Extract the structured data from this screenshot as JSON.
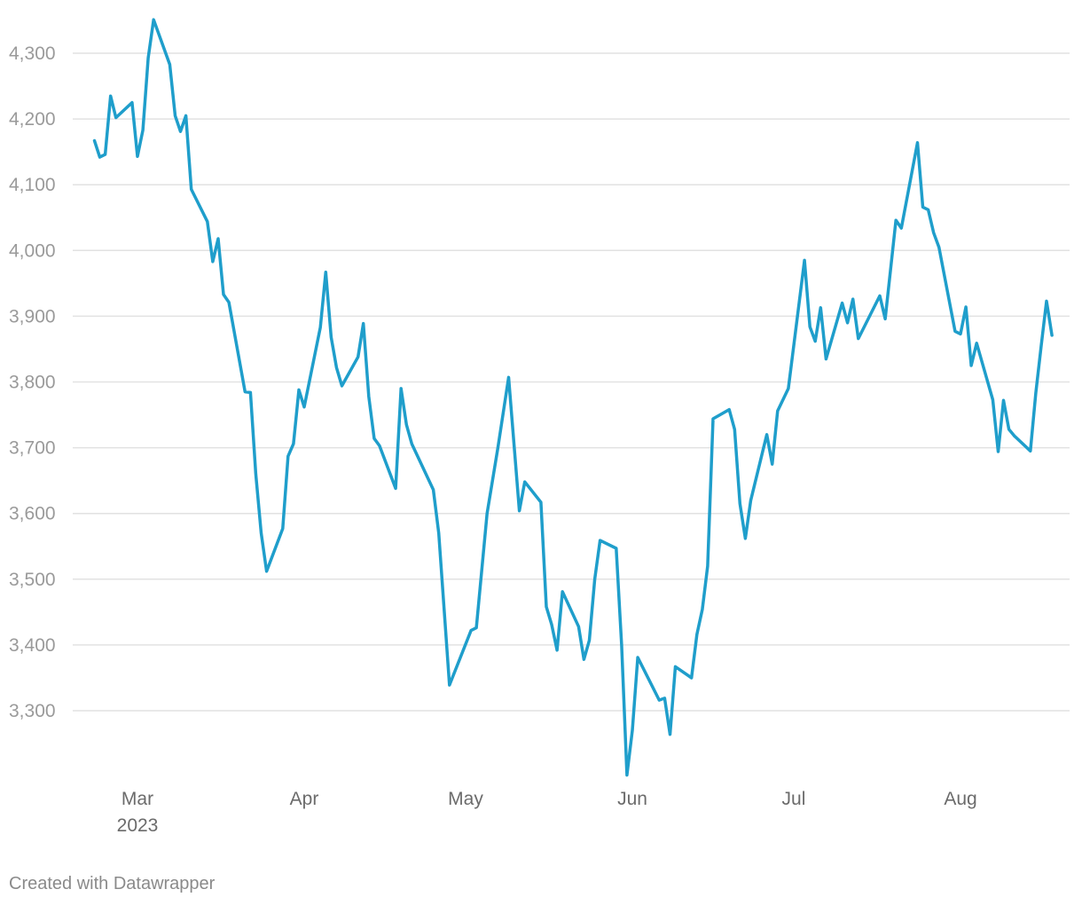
{
  "footer": {
    "credit": "Created with Datawrapper"
  },
  "colors": {
    "line": "#1f9ecb",
    "grid": "#e2e2e2"
  },
  "chart_data": {
    "type": "line",
    "title": "",
    "xlabel": "",
    "ylabel": "",
    "grid": true,
    "ylim": [
      3200,
      4350
    ],
    "yticks": [
      {
        "value": 3300,
        "label": "3,300"
      },
      {
        "value": 3400,
        "label": "3,400"
      },
      {
        "value": 3500,
        "label": "3,500"
      },
      {
        "value": 3600,
        "label": "3,600"
      },
      {
        "value": 3700,
        "label": "3,700"
      },
      {
        "value": 3800,
        "label": "3,800"
      },
      {
        "value": 3900,
        "label": "3,900"
      },
      {
        "value": 4000,
        "label": "4,000"
      },
      {
        "value": 4100,
        "label": "4,100"
      },
      {
        "value": 4200,
        "label": "4,200"
      },
      {
        "value": 4300,
        "label": "4,300"
      }
    ],
    "xticks": [
      {
        "date": "2023-03-01",
        "label": "Mar",
        "sublabel": "2023"
      },
      {
        "date": "2023-04-01",
        "label": "Apr",
        "sublabel": ""
      },
      {
        "date": "2023-05-01",
        "label": "May",
        "sublabel": ""
      },
      {
        "date": "2023-06-01",
        "label": "Jun",
        "sublabel": ""
      },
      {
        "date": "2023-07-01",
        "label": "Jul",
        "sublabel": ""
      },
      {
        "date": "2023-08-01",
        "label": "Aug",
        "sublabel": ""
      }
    ],
    "xrange": [
      "2023-02-21",
      "2023-08-19"
    ],
    "series": [
      {
        "points": [
          [
            "2023-02-21",
            4167
          ],
          [
            "2023-02-22",
            4142
          ],
          [
            "2023-02-23",
            4146
          ],
          [
            "2023-02-24",
            4235
          ],
          [
            "2023-02-25",
            4202
          ],
          [
            "2023-02-28",
            4225
          ],
          [
            "2023-03-01",
            4143
          ],
          [
            "2023-03-02",
            4183
          ],
          [
            "2023-03-03",
            4293
          ],
          [
            "2023-03-04",
            4351
          ],
          [
            "2023-03-07",
            4283
          ],
          [
            "2023-03-08",
            4205
          ],
          [
            "2023-03-09",
            4181
          ],
          [
            "2023-03-10",
            4205
          ],
          [
            "2023-03-11",
            4093
          ],
          [
            "2023-03-14",
            4044
          ],
          [
            "2023-03-15",
            3983
          ],
          [
            "2023-03-16",
            4018
          ],
          [
            "2023-03-17",
            3933
          ],
          [
            "2023-03-18",
            3921
          ],
          [
            "2023-03-21",
            3785
          ],
          [
            "2023-03-22",
            3784
          ],
          [
            "2023-03-23",
            3660
          ],
          [
            "2023-03-24",
            3570
          ],
          [
            "2023-03-25",
            3512
          ],
          [
            "2023-03-28",
            3577
          ],
          [
            "2023-03-29",
            3687
          ],
          [
            "2023-03-30",
            3706
          ],
          [
            "2023-03-31",
            3788
          ],
          [
            "2023-04-01",
            3762
          ],
          [
            "2023-04-04",
            3883
          ],
          [
            "2023-04-05",
            3967
          ],
          [
            "2023-04-06",
            3868
          ],
          [
            "2023-04-07",
            3822
          ],
          [
            "2023-04-08",
            3794
          ],
          [
            "2023-04-11",
            3838
          ],
          [
            "2023-04-12",
            3889
          ],
          [
            "2023-04-13",
            3778
          ],
          [
            "2023-04-14",
            3714
          ],
          [
            "2023-04-15",
            3703
          ],
          [
            "2023-04-18",
            3638
          ],
          [
            "2023-04-19",
            3790
          ],
          [
            "2023-04-20",
            3735
          ],
          [
            "2023-04-21",
            3706
          ],
          [
            "2023-04-25",
            3636
          ],
          [
            "2023-04-26",
            3570
          ],
          [
            "2023-04-28",
            3339
          ],
          [
            "2023-05-02",
            3422
          ],
          [
            "2023-05-03",
            3426
          ],
          [
            "2023-05-05",
            3600
          ],
          [
            "2023-05-07",
            3700
          ],
          [
            "2023-05-09",
            3807
          ],
          [
            "2023-05-11",
            3604
          ],
          [
            "2023-05-12",
            3648
          ],
          [
            "2023-05-15",
            3617
          ],
          [
            "2023-05-16",
            3458
          ],
          [
            "2023-05-17",
            3431
          ],
          [
            "2023-05-18",
            3392
          ],
          [
            "2023-05-19",
            3481
          ],
          [
            "2023-05-22",
            3428
          ],
          [
            "2023-05-23",
            3378
          ],
          [
            "2023-05-24",
            3407
          ],
          [
            "2023-05-25",
            3500
          ],
          [
            "2023-05-26",
            3559
          ],
          [
            "2023-05-29",
            3547
          ],
          [
            "2023-05-30",
            3400
          ],
          [
            "2023-05-31",
            3202
          ],
          [
            "2023-06-01",
            3270
          ],
          [
            "2023-06-02",
            3381
          ],
          [
            "2023-06-06",
            3316
          ],
          [
            "2023-06-07",
            3319
          ],
          [
            "2023-06-08",
            3264
          ],
          [
            "2023-06-09",
            3367
          ],
          [
            "2023-06-12",
            3350
          ],
          [
            "2023-06-13",
            3416
          ],
          [
            "2023-06-14",
            3454
          ],
          [
            "2023-06-15",
            3520
          ],
          [
            "2023-06-16",
            3744
          ],
          [
            "2023-06-19",
            3758
          ],
          [
            "2023-06-20",
            3728
          ],
          [
            "2023-06-21",
            3615
          ],
          [
            "2023-06-22",
            3562
          ],
          [
            "2023-06-23",
            3620
          ],
          [
            "2023-06-26",
            3720
          ],
          [
            "2023-06-27",
            3675
          ],
          [
            "2023-06-28",
            3756
          ],
          [
            "2023-06-30",
            3790
          ],
          [
            "2023-07-03",
            3985
          ],
          [
            "2023-07-04",
            3884
          ],
          [
            "2023-07-05",
            3862
          ],
          [
            "2023-07-06",
            3913
          ],
          [
            "2023-07-07",
            3835
          ],
          [
            "2023-07-10",
            3920
          ],
          [
            "2023-07-11",
            3890
          ],
          [
            "2023-07-12",
            3926
          ],
          [
            "2023-07-13",
            3866
          ],
          [
            "2023-07-17",
            3931
          ],
          [
            "2023-07-18",
            3896
          ],
          [
            "2023-07-20",
            4046
          ],
          [
            "2023-07-21",
            4034
          ],
          [
            "2023-07-24",
            4164
          ],
          [
            "2023-07-25",
            4066
          ],
          [
            "2023-07-26",
            4062
          ],
          [
            "2023-07-27",
            4027
          ],
          [
            "2023-07-28",
            4005
          ],
          [
            "2023-07-31",
            3877
          ],
          [
            "2023-08-01",
            3873
          ],
          [
            "2023-08-02",
            3914
          ],
          [
            "2023-08-03",
            3825
          ],
          [
            "2023-08-04",
            3859
          ],
          [
            "2023-08-07",
            3773
          ],
          [
            "2023-08-08",
            3694
          ],
          [
            "2023-08-09",
            3772
          ],
          [
            "2023-08-10",
            3728
          ],
          [
            "2023-08-11",
            3718
          ],
          [
            "2023-08-14",
            3695
          ],
          [
            "2023-08-15",
            3783
          ],
          [
            "2023-08-16",
            3855
          ],
          [
            "2023-08-17",
            3923
          ],
          [
            "2023-08-18",
            3871
          ]
        ]
      }
    ]
  }
}
